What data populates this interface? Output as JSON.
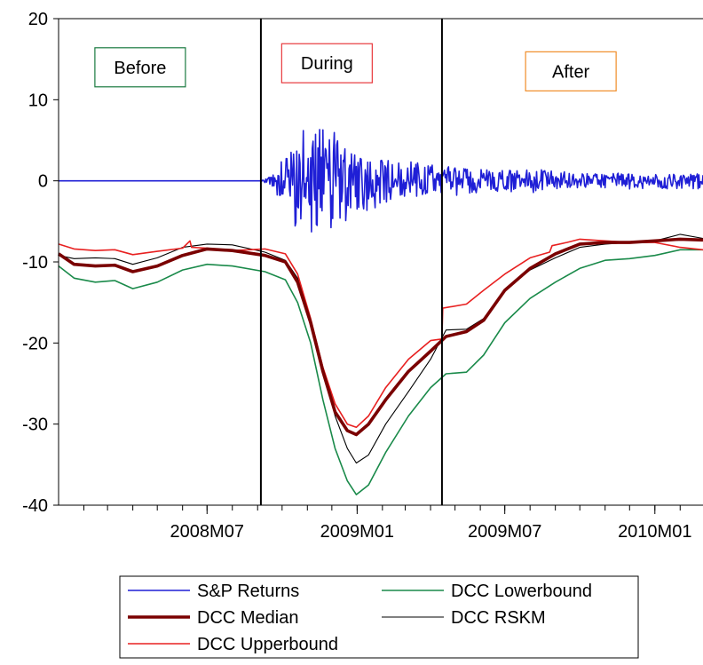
{
  "chart_data": {
    "type": "line",
    "title": "",
    "xlabel": "",
    "ylabel": "",
    "ylim": [
      -40,
      20
    ],
    "y_ticks": [
      20,
      10,
      0,
      -10,
      -20,
      -30,
      -40
    ],
    "x_range": [
      "2008-01-01",
      "2010-03-01"
    ],
    "x_tick_labels": [
      {
        "date": "2008-07-01",
        "label": "2008M07"
      },
      {
        "date": "2009-01-01",
        "label": "2009M01"
      },
      {
        "date": "2009-07-01",
        "label": "2009M07"
      },
      {
        "date": "2010-01-01",
        "label": "2010M01"
      }
    ],
    "grid": false,
    "legend_position": "bottom",
    "annotations": [
      {
        "text": "Before",
        "color": "#1a7a40",
        "center_date": "2008-04-10",
        "y": 14
      },
      {
        "text": "During",
        "color": "#e8383c",
        "center_date": "2008-11-25",
        "y": 14.5
      },
      {
        "text": "After",
        "color": "#f08c28",
        "center_date": "2009-09-20",
        "y": 13.5
      }
    ],
    "vertical_lines": [
      "2008-09-05",
      "2009-04-15"
    ],
    "series": [
      {
        "name": "S&P Returns",
        "color": "#1f1fd6",
        "width": 1.6,
        "noise": true,
        "points": [
          [
            "2008-01-01",
            0
          ],
          [
            "2008-09-05",
            0
          ],
          [
            "2008-09-20",
            1
          ],
          [
            "2008-10-15",
            6
          ],
          [
            "2008-11-05",
            7
          ],
          [
            "2008-12-05",
            6
          ],
          [
            "2009-01-05",
            4
          ],
          [
            "2009-02-05",
            3
          ],
          [
            "2009-04-10",
            2
          ],
          [
            "2009-05-01",
            1.8
          ],
          [
            "2009-08-01",
            1.5
          ],
          [
            "2009-10-01",
            1
          ],
          [
            "2010-03-01",
            1
          ]
        ]
      },
      {
        "name": "DCC Lowerbound",
        "color": "#1a8a4a",
        "width": 1.6,
        "points": [
          [
            "2008-01-01",
            -10.5
          ],
          [
            "2008-01-20",
            -12
          ],
          [
            "2008-02-15",
            -12.5
          ],
          [
            "2008-03-10",
            -12.3
          ],
          [
            "2008-04-01",
            -13.3
          ],
          [
            "2008-05-01",
            -12.5
          ],
          [
            "2008-06-01",
            -11
          ],
          [
            "2008-07-01",
            -10.3
          ],
          [
            "2008-08-01",
            -10.5
          ],
          [
            "2008-09-10",
            -11.2
          ],
          [
            "2008-10-05",
            -12.2
          ],
          [
            "2008-10-20",
            -15
          ],
          [
            "2008-11-05",
            -20
          ],
          [
            "2008-11-20",
            -27
          ],
          [
            "2008-12-05",
            -33
          ],
          [
            "2008-12-20",
            -37
          ],
          [
            "2008-12-31",
            -38.7
          ],
          [
            "2009-01-15",
            -37.5
          ],
          [
            "2009-02-05",
            -33.5
          ],
          [
            "2009-03-05",
            -29
          ],
          [
            "2009-04-01",
            -25.5
          ],
          [
            "2009-04-20",
            -23.8
          ],
          [
            "2009-05-15",
            -23.6
          ],
          [
            "2009-06-05",
            -21.5
          ],
          [
            "2009-07-01",
            -17.5
          ],
          [
            "2009-08-01",
            -14.5
          ],
          [
            "2009-09-01",
            -12.5
          ],
          [
            "2009-10-01",
            -10.8
          ],
          [
            "2009-11-01",
            -9.8
          ],
          [
            "2009-12-01",
            -9.6
          ],
          [
            "2010-01-01",
            -9.2
          ],
          [
            "2010-02-01",
            -8.5
          ],
          [
            "2010-03-01",
            -8.5
          ]
        ]
      },
      {
        "name": "DCC RSKM",
        "color": "#000000",
        "width": 1.1,
        "points": [
          [
            "2008-01-01",
            -9.2
          ],
          [
            "2008-01-20",
            -9.6
          ],
          [
            "2008-02-15",
            -9.5
          ],
          [
            "2008-03-10",
            -9.6
          ],
          [
            "2008-04-01",
            -10.3
          ],
          [
            "2008-05-01",
            -9.5
          ],
          [
            "2008-06-01",
            -8.2
          ],
          [
            "2008-07-01",
            -7.8
          ],
          [
            "2008-08-01",
            -7.9
          ],
          [
            "2008-09-10",
            -8.8
          ],
          [
            "2008-10-05",
            -9.8
          ],
          [
            "2008-10-20",
            -12
          ],
          [
            "2008-11-05",
            -17
          ],
          [
            "2008-11-20",
            -23
          ],
          [
            "2008-12-05",
            -29
          ],
          [
            "2008-12-20",
            -33
          ],
          [
            "2008-12-31",
            -34.8
          ],
          [
            "2009-01-15",
            -33.8
          ],
          [
            "2009-02-05",
            -30
          ],
          [
            "2009-03-05",
            -26
          ],
          [
            "2009-04-01",
            -22
          ],
          [
            "2009-04-20",
            -18.4
          ],
          [
            "2009-05-15",
            -18.3
          ],
          [
            "2009-06-05",
            -17
          ],
          [
            "2009-07-01",
            -13.5
          ],
          [
            "2009-08-01",
            -11
          ],
          [
            "2009-09-01",
            -9.5
          ],
          [
            "2009-10-01",
            -8.2
          ],
          [
            "2009-11-01",
            -7.8
          ],
          [
            "2009-12-01",
            -7.6
          ],
          [
            "2010-01-01",
            -7.4
          ],
          [
            "2010-02-01",
            -6.6
          ],
          [
            "2010-03-01",
            -7.1
          ]
        ]
      },
      {
        "name": "DCC Upperbound",
        "color": "#e82020",
        "width": 1.6,
        "points": [
          [
            "2008-01-01",
            -7.8
          ],
          [
            "2008-01-20",
            -8.4
          ],
          [
            "2008-02-15",
            -8.6
          ],
          [
            "2008-03-10",
            -8.5
          ],
          [
            "2008-04-01",
            -9.1
          ],
          [
            "2008-05-01",
            -8.7
          ],
          [
            "2008-06-01",
            -8.3
          ],
          [
            "2008-06-10",
            -7.4
          ],
          [
            "2008-06-12",
            -8.2
          ],
          [
            "2008-07-01",
            -8.3
          ],
          [
            "2008-08-01",
            -8.6
          ],
          [
            "2008-09-10",
            -8.4
          ],
          [
            "2008-10-05",
            -9.0
          ],
          [
            "2008-10-20",
            -11.5
          ],
          [
            "2008-11-05",
            -17
          ],
          [
            "2008-11-20",
            -23
          ],
          [
            "2008-12-05",
            -27.5
          ],
          [
            "2008-12-20",
            -30
          ],
          [
            "2008-12-31",
            -30.4
          ],
          [
            "2009-01-15",
            -29
          ],
          [
            "2009-02-05",
            -25.5
          ],
          [
            "2009-03-05",
            -22
          ],
          [
            "2009-04-01",
            -19.7
          ],
          [
            "2009-04-15",
            -19.5
          ],
          [
            "2009-04-16",
            -15.7
          ],
          [
            "2009-05-15",
            -15.2
          ],
          [
            "2009-06-05",
            -13.5
          ],
          [
            "2009-07-01",
            -11.5
          ],
          [
            "2009-08-01",
            -9.5
          ],
          [
            "2009-08-25",
            -8.8
          ],
          [
            "2009-08-28",
            -8.0
          ],
          [
            "2009-09-15",
            -7.6
          ],
          [
            "2009-10-01",
            -7.2
          ],
          [
            "2009-11-01",
            -7.4
          ],
          [
            "2009-12-01",
            -7.6
          ],
          [
            "2010-01-01",
            -7.6
          ],
          [
            "2010-02-01",
            -8.2
          ],
          [
            "2010-03-01",
            -8.5
          ]
        ]
      },
      {
        "name": "DCC Median",
        "color": "#7a0000",
        "width": 3.6,
        "points": [
          [
            "2008-01-01",
            -9.0
          ],
          [
            "2008-01-20",
            -10.3
          ],
          [
            "2008-02-15",
            -10.5
          ],
          [
            "2008-03-10",
            -10.4
          ],
          [
            "2008-04-01",
            -11.2
          ],
          [
            "2008-05-01",
            -10.5
          ],
          [
            "2008-06-01",
            -9.2
          ],
          [
            "2008-07-01",
            -8.4
          ],
          [
            "2008-08-01",
            -8.6
          ],
          [
            "2008-09-10",
            -9.2
          ],
          [
            "2008-10-05",
            -10.0
          ],
          [
            "2008-10-20",
            -12.5
          ],
          [
            "2008-11-05",
            -17.5
          ],
          [
            "2008-11-20",
            -23.5
          ],
          [
            "2008-12-05",
            -28.5
          ],
          [
            "2008-12-20",
            -30.8
          ],
          [
            "2008-12-31",
            -31.3
          ],
          [
            "2009-01-15",
            -30
          ],
          [
            "2009-02-05",
            -27
          ],
          [
            "2009-03-05",
            -23.5
          ],
          [
            "2009-04-01",
            -21
          ],
          [
            "2009-04-20",
            -19.2
          ],
          [
            "2009-05-15",
            -18.6
          ],
          [
            "2009-06-05",
            -17.2
          ],
          [
            "2009-07-01",
            -13.5
          ],
          [
            "2009-08-01",
            -10.8
          ],
          [
            "2009-09-01",
            -9.0
          ],
          [
            "2009-10-01",
            -7.8
          ],
          [
            "2009-11-01",
            -7.6
          ],
          [
            "2009-12-01",
            -7.6
          ],
          [
            "2010-01-01",
            -7.4
          ],
          [
            "2010-02-01",
            -7.2
          ],
          [
            "2010-03-01",
            -7.3
          ]
        ]
      }
    ],
    "legend": [
      {
        "name": "S&P Returns",
        "color": "#1f1fd6",
        "width": 1.6
      },
      {
        "name": "DCC Lowerbound",
        "color": "#1a8a4a",
        "width": 1.6
      },
      {
        "name": "DCC Median",
        "color": "#7a0000",
        "width": 3.6
      },
      {
        "name": "DCC RSKM",
        "color": "#000000",
        "width": 1.1
      },
      {
        "name": "DCC Upperbound",
        "color": "#e82020",
        "width": 1.6
      }
    ]
  }
}
